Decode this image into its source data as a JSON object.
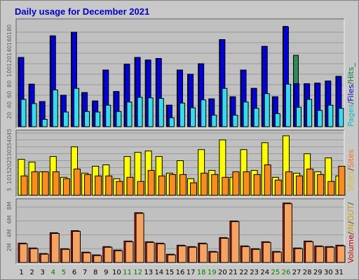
{
  "chart_data": {
    "type": "bar",
    "title": "Daily usage for December 2021",
    "days": [
      "1",
      "2",
      "3",
      "4",
      "5",
      "6",
      "7",
      "8",
      "9",
      "10",
      "11",
      "12",
      "13",
      "14",
      "15",
      "16",
      "17",
      "18",
      "19",
      "20",
      "21",
      "22",
      "23",
      "24",
      "25",
      "26",
      "27",
      "28",
      "29",
      "30",
      "31"
    ],
    "weekend_days": [
      "4",
      "5",
      "11",
      "12",
      "18",
      "19",
      "25",
      "26"
    ],
    "panels": [
      {
        "name": "pages-files-hits",
        "yticks": [
          "20",
          "40",
          "60",
          "80",
          "100",
          "120",
          "140",
          "160",
          "180"
        ],
        "ylim": [
          0,
          200
        ],
        "legend": [
          {
            "label": "Pages",
            "color": "#00c0c0"
          },
          {
            "label": "/",
            "color": "#404040"
          },
          {
            "label": "Files",
            "color": "#0000c0"
          },
          {
            "label": "/",
            "color": "#404040"
          },
          {
            "label": "Hits",
            "color": "#008040"
          },
          {
            "label": "_",
            "color": "#404040"
          }
        ],
        "series": [
          {
            "name": "Hits",
            "color": "#2e8b57",
            "values": [
              132,
              81,
              48,
              173,
              60,
              180,
              65,
              49,
              108,
              67,
              119,
              132,
              127,
              130,
              41,
              108,
              100,
              120,
              53,
              166,
              57,
              108,
              73,
              153,
              57,
              191,
              136,
              82,
              83,
              87,
              96
            ]
          },
          {
            "name": "Files",
            "color": "#0000e0",
            "values": [
              132,
              81,
              48,
              173,
              60,
              180,
              65,
              49,
              108,
              67,
              119,
              132,
              127,
              130,
              41,
              108,
              100,
              120,
              53,
              166,
              57,
              108,
              73,
              153,
              57,
              190,
              82,
              82,
              83,
              87,
              96
            ]
          },
          {
            "name": "Pages",
            "color": "#33ddee",
            "values": [
              52,
              44,
              14,
              70,
              28,
              73,
              29,
              28,
              41,
              29,
              47,
              56,
              55,
              54,
              17,
              45,
              36,
              51,
              22,
              73,
              22,
              47,
              35,
              63,
              25,
              81,
              37,
              52,
              31,
              41,
              35
            ]
          }
        ]
      },
      {
        "name": "visits-sites",
        "yticks": [
          "5",
          "10",
          "15",
          "20",
          "25",
          "30",
          "35",
          "40",
          "45"
        ],
        "ylim": [
          0,
          45
        ],
        "legend": [
          {
            "label": "Visits",
            "color": "#d8c020"
          },
          {
            "label": "/",
            "color": "#404040"
          },
          {
            "label": "Sites",
            "color": "#f07010"
          }
        ],
        "series": [
          {
            "name": "Visits",
            "color": "#ffff00",
            "values": [
              26,
              24,
              17,
              28,
              13,
              35,
              16,
              21,
              22,
              12,
              28,
              31,
              32,
              28,
              16,
              25,
              12,
              33,
              18,
              40,
              13,
              33,
              18,
              38,
              13,
              43,
              16,
              30,
              17,
              27,
              14
            ]
          },
          {
            "name": "Sites",
            "color": "#ff8c1a",
            "values": [
              14,
              17,
              17,
              17,
              12,
              19,
              15,
              14,
              14,
              10,
              13,
              10,
              18,
              14,
              15,
              15,
              9,
              16,
              15,
              13,
              17,
              17,
              15,
              22,
              11,
              17,
              14,
              19,
              15,
              10,
              21
            ]
          }
        ]
      },
      {
        "name": "volume-in-out",
        "yticks": [
          "2M",
          "4M",
          "6M",
          "8M"
        ],
        "ylim": [
          0,
          8.8
        ],
        "legend": [
          {
            "label": "Volume",
            "color": "#cc0000"
          },
          {
            "label": "/",
            "color": "#404040"
          },
          {
            "label": "IN",
            "color": "#d0a000"
          },
          {
            "label": "/",
            "color": "#404040"
          },
          {
            "label": "OUT",
            "color": "#d0a000"
          },
          {
            "label": "/",
            "color": "#404040"
          }
        ],
        "series": [
          {
            "name": "Volume",
            "color": "#dd1111",
            "values": [
              2.8,
              2.1,
              1.3,
              4.3,
              2.0,
              4.6,
              1.5,
              1.1,
              2.3,
              1.8,
              3.1,
              7.2,
              3.0,
              2.8,
              1.2,
              2.5,
              2.3,
              2.8,
              1.6,
              3.6,
              6.0,
              2.4,
              2.0,
              3.0,
              1.6,
              8.6,
              2.1,
              3.1,
              2.4,
              2.3,
              2.5
            ]
          },
          {
            "name": "OUT",
            "color": "#f4a460",
            "values": [
              2.7,
              2.0,
              1.2,
              4.2,
              1.9,
              4.5,
              1.4,
              1.0,
              2.2,
              1.7,
              3.0,
              7.1,
              2.9,
              2.7,
              1.1,
              2.4,
              2.2,
              2.7,
              1.5,
              3.5,
              5.9,
              2.3,
              1.9,
              2.9,
              1.5,
              8.5,
              2.0,
              3.0,
              2.3,
              2.2,
              2.4
            ]
          }
        ]
      }
    ]
  }
}
